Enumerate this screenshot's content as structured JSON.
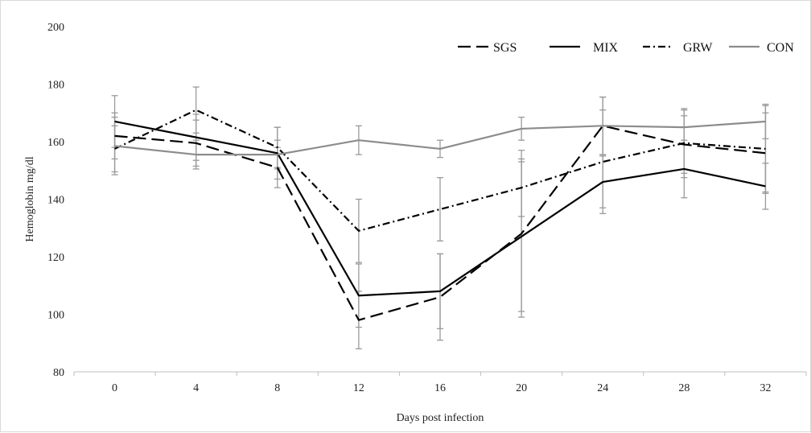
{
  "chart_data": {
    "type": "line",
    "title": "",
    "xlabel": "Days post infection",
    "ylabel": "Hemoglobin mg/dl",
    "categories": [
      "0",
      "4",
      "8",
      "12",
      "16",
      "20",
      "24",
      "28",
      "32"
    ],
    "ylim": [
      80,
      200
    ],
    "yticks": [
      80,
      100,
      120,
      140,
      160,
      180,
      200
    ],
    "grid": false,
    "legend_position": "top-right",
    "series": [
      {
        "name": "SGS",
        "color": "#000000",
        "dash": "dashed",
        "values": [
          162,
          159.5,
          151,
          98,
          106,
          128,
          165.5,
          159,
          156
        ],
        "error": [
          8,
          8,
          7,
          10,
          15,
          29,
          10,
          10,
          14
        ]
      },
      {
        "name": "MIX",
        "color": "#000000",
        "dash": "solid",
        "values": [
          167,
          161.5,
          156,
          106.5,
          108,
          127,
          146,
          150.5,
          144.5
        ],
        "error": [
          9,
          8,
          9,
          11,
          13,
          26,
          9,
          10,
          8
        ]
      },
      {
        "name": "GRW",
        "color": "#000000",
        "dash": "dashdot",
        "values": [
          157.5,
          171,
          158,
          129,
          136.5,
          144,
          153,
          159.5,
          157.5
        ],
        "error": [
          8,
          8,
          7,
          11,
          11,
          10,
          18,
          12,
          15
        ]
      },
      {
        "name": "CON",
        "color": "#8c8c8c",
        "dash": "solid",
        "values": [
          158.5,
          155.5,
          155.5,
          160.5,
          157.5,
          164.5,
          165.5,
          165,
          167
        ],
        "error": [
          10,
          5,
          5,
          5,
          3,
          4,
          10,
          6,
          6
        ]
      }
    ]
  }
}
